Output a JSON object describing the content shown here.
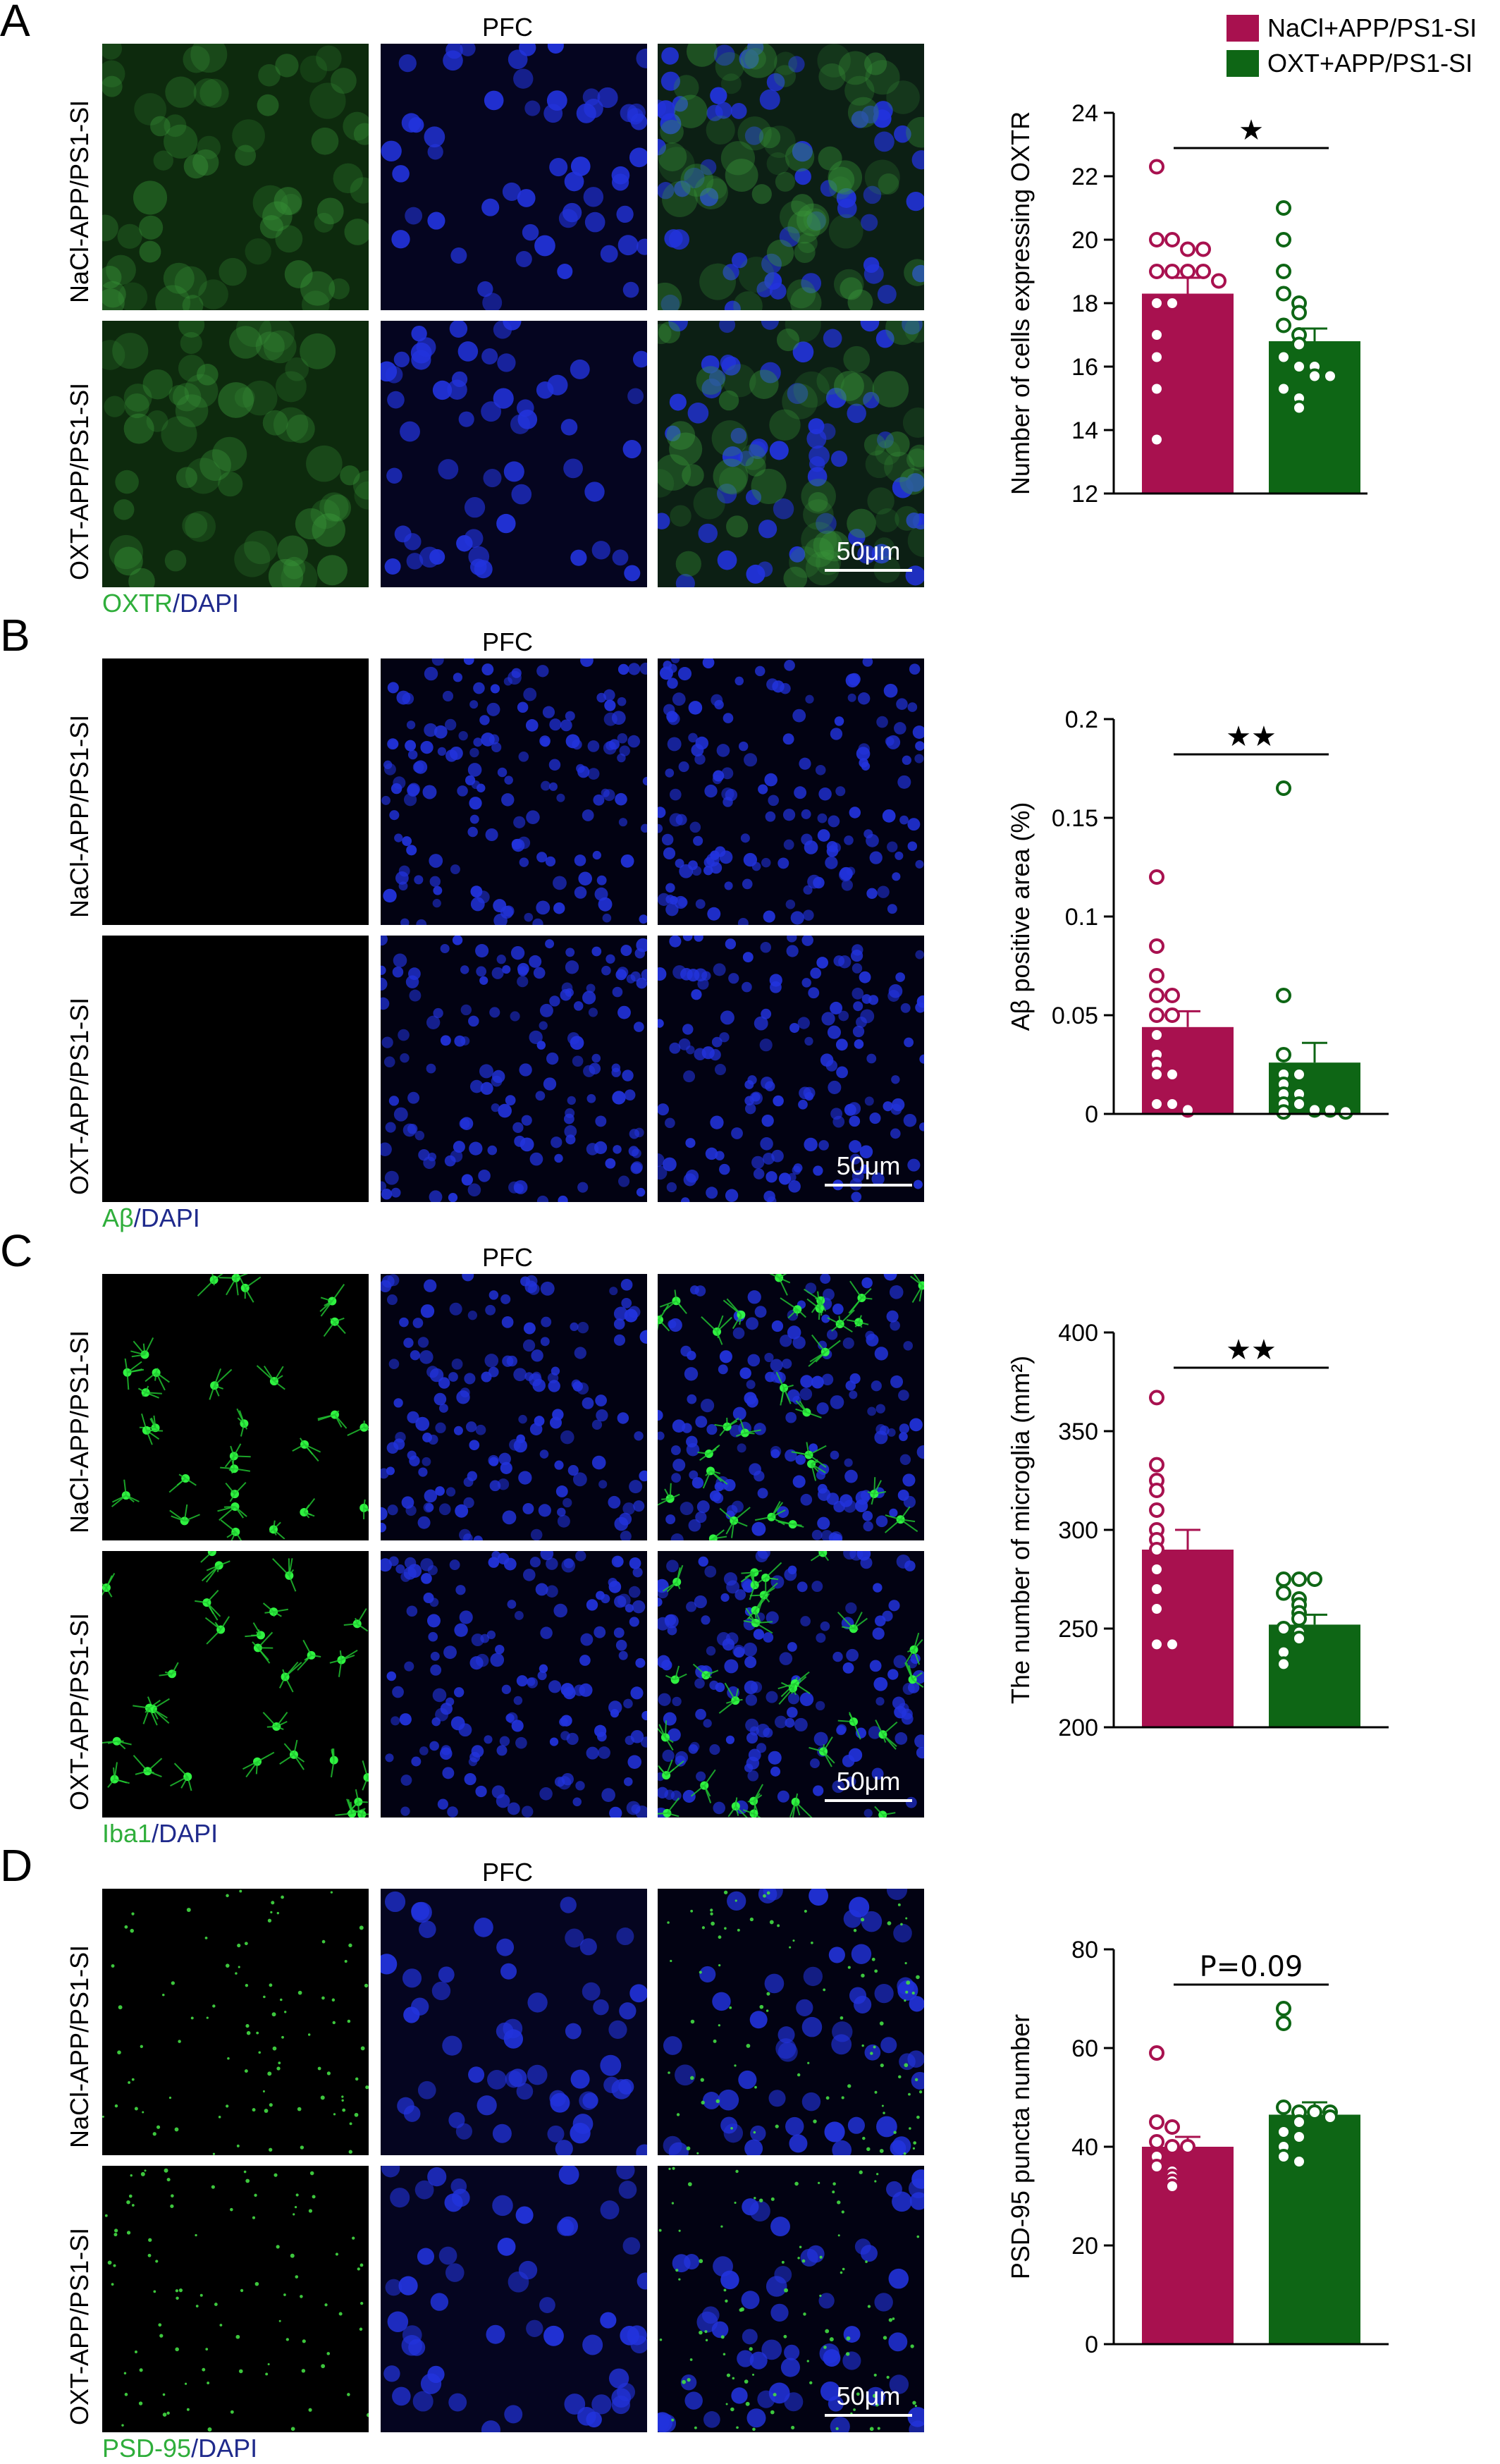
{
  "legend": [
    {
      "label": "NaCl+APP/PS1-SI",
      "color": "#a8114f"
    },
    {
      "label": "OXT+APP/PS1-SI",
      "color": "#0e6615"
    }
  ],
  "colors": {
    "nacl": "#a8114f",
    "oxt": "#0e6615",
    "stain_green": "#2fae3b",
    "stain_blue": "#1f2a8c"
  },
  "panels": [
    {
      "letter": "A",
      "region": "PFC",
      "row_labels": [
        "NaCl-APP/PS1-SI",
        "OXT-APP/PS1-SI"
      ],
      "stain_green": "OXTR",
      "stain_sep": "/",
      "stain_blue": "DAPI",
      "scale": "50μm"
    },
    {
      "letter": "B",
      "region": "PFC",
      "row_labels": [
        "NaCl-APP/PS1-SI",
        "OXT-APP/PS1-SI"
      ],
      "stain_green": "Aβ",
      "stain_sep": "/",
      "stain_blue": "DAPI",
      "scale": "50μm"
    },
    {
      "letter": "C",
      "region": "PFC",
      "row_labels": [
        "NaCl-APP/PS1-SI",
        "OXT-APP/PS1-SI"
      ],
      "stain_green": "Iba1",
      "stain_sep": "/",
      "stain_blue": "DAPI",
      "scale": "50μm"
    },
    {
      "letter": "D",
      "region": "PFC",
      "row_labels": [
        "NaCl-APP/PS1-SI",
        "OXT-APP/PS1-SI"
      ],
      "stain_green": "PSD-95",
      "stain_sep": "/",
      "stain_blue": "DAPI",
      "scale": "50μm"
    }
  ],
  "chart_data": [
    {
      "type": "bar",
      "ylabel": "Number of cells expressing OXTR",
      "ylim": [
        12,
        24
      ],
      "yticks": [
        "12",
        "14",
        "16",
        "18",
        "20",
        "22",
        "24"
      ],
      "significance": "★",
      "series": [
        {
          "name": "NaCl+APP/PS1-SI",
          "value": 18.3,
          "sem": 0.5,
          "points": [
            22.3,
            20.0,
            20.0,
            19.7,
            19.7,
            19.0,
            19.0,
            19.0,
            19.0,
            18.7,
            18.0,
            18.0,
            17.0,
            16.3,
            15.3,
            13.7
          ]
        },
        {
          "name": "OXT+APP/PS1-SI",
          "value": 16.8,
          "sem": 0.4,
          "points": [
            21.0,
            20.0,
            19.0,
            18.3,
            18.0,
            17.7,
            17.3,
            17.0,
            16.7,
            16.3,
            16.0,
            16.0,
            15.7,
            15.7,
            15.3,
            15.0,
            14.7
          ]
        }
      ]
    },
    {
      "type": "bar",
      "ylabel": "Aβ positive area (%)",
      "ylim": [
        0,
        0.2
      ],
      "yticks": [
        "0",
        "0.05",
        "0.1",
        "0.15",
        "0.2"
      ],
      "significance": "★★",
      "series": [
        {
          "name": "NaCl+APP/PS1-SI",
          "value": 0.044,
          "sem": 0.008,
          "points": [
            0.12,
            0.085,
            0.07,
            0.06,
            0.06,
            0.05,
            0.05,
            0.04,
            0.03,
            0.025,
            0.02,
            0.02,
            0.005,
            0.005,
            0.002
          ]
        },
        {
          "name": "OXT+APP/PS1-SI",
          "value": 0.026,
          "sem": 0.01,
          "points": [
            0.165,
            0.06,
            0.03,
            0.02,
            0.02,
            0.015,
            0.01,
            0.01,
            0.005,
            0.005,
            0.002,
            0.002,
            0.001,
            0.001
          ]
        }
      ]
    },
    {
      "type": "bar",
      "ylabel": "The number of microglia (mm²)",
      "ylim": [
        200,
        400
      ],
      "yticks": [
        "200",
        "250",
        "300",
        "350",
        "400"
      ],
      "significance": "★★",
      "series": [
        {
          "name": "NaCl+APP/PS1-SI",
          "value": 290,
          "sem": 10,
          "points": [
            367,
            333,
            325,
            320,
            310,
            300,
            295,
            290,
            280,
            270,
            260,
            242,
            242
          ]
        },
        {
          "name": "OXT+APP/PS1-SI",
          "value": 252,
          "sem": 5,
          "points": [
            275,
            275,
            275,
            268,
            265,
            262,
            258,
            255,
            250,
            248,
            245,
            238,
            232
          ]
        }
      ]
    },
    {
      "type": "bar",
      "ylabel": "PSD-95 puncta number",
      "ylim": [
        0,
        80
      ],
      "yticks": [
        "0",
        "20",
        "40",
        "60",
        "80"
      ],
      "significance": "P=0.09",
      "series": [
        {
          "name": "NaCl+APP/PS1-SI",
          "value": 40,
          "sem": 2,
          "points": [
            59,
            45,
            44,
            41,
            40,
            40,
            38,
            36,
            35,
            34,
            33,
            32
          ]
        },
        {
          "name": "OXT+APP/PS1-SI",
          "value": 46.5,
          "sem": 2.5,
          "points": [
            68,
            65,
            48,
            47,
            47,
            47,
            46,
            45,
            43,
            42,
            40,
            38,
            37
          ]
        }
      ]
    }
  ]
}
